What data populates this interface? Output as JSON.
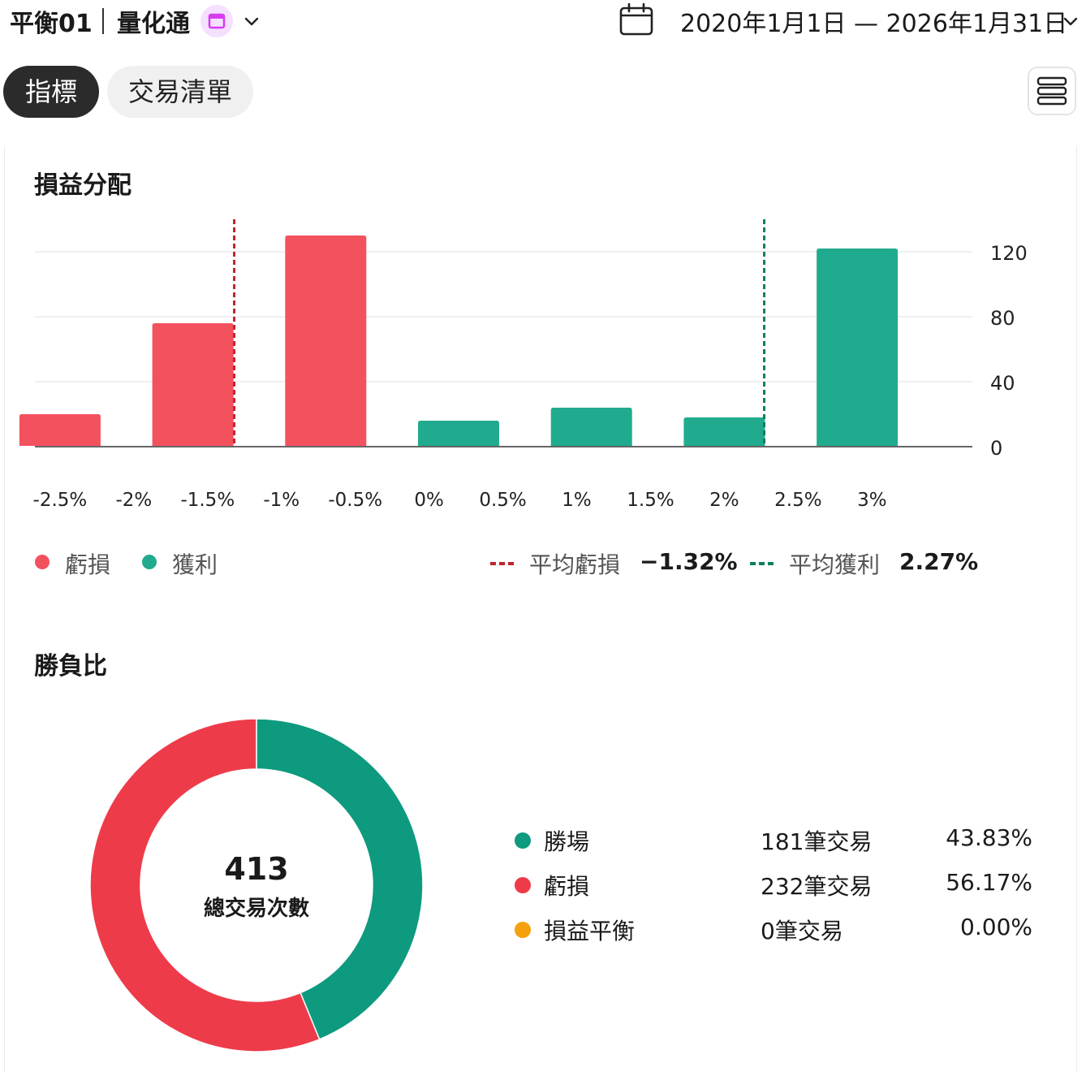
{
  "header": {
    "title": "平衡01",
    "app_name": "量化通",
    "date_range": "2020年1月1日 — 2026年1月31日",
    "icons": [
      "calendar-icon",
      "chevron-down-icon",
      "menu-icon"
    ]
  },
  "tabs": [
    {
      "label": "指標",
      "active": true
    },
    {
      "label": "交易清單",
      "active": false
    }
  ],
  "pl_section": {
    "title": "損益分配",
    "legend_loss": "虧損",
    "legend_gain": "獲利",
    "avg_loss_label": "平均虧損",
    "avg_loss_value": "−1.32%",
    "avg_gain_label": "平均獲利",
    "avg_gain_value": "2.27%"
  },
  "wl_section": {
    "title": "勝負比",
    "total_value": "413",
    "total_label": "總交易次數",
    "rows": [
      {
        "label": "勝場",
        "count": "181筆交易",
        "pct": "43.83%",
        "color": "#0e9a7e"
      },
      {
        "label": "虧損",
        "count": "232筆交易",
        "pct": "56.17%",
        "color": "#ee3b4a"
      },
      {
        "label": "損益平衡",
        "count": "0筆交易",
        "pct": "0.00%",
        "color": "#f4a10c"
      }
    ]
  },
  "colors": {
    "loss": "#f4515f",
    "gain": "#21ab8e",
    "avg_loss_line": "#c0242f",
    "avg_gain_line": "#0a7f5f",
    "donut_win": "#0e9a7e",
    "donut_loss": "#ee3b4a"
  },
  "chart_data": [
    {
      "type": "bar",
      "title": "損益分配",
      "x_tick_labels": [
        "-2.5%",
        "-2%",
        "-1.5%",
        "-1%",
        "-0.5%",
        "0%",
        "0.5%",
        "1%",
        "1.5%",
        "2%",
        "2.5%",
        "3%"
      ],
      "x_ticks": [
        -2.5,
        -2,
        -1.5,
        -1,
        -0.5,
        0,
        0.5,
        1,
        1.5,
        2,
        2.5,
        3
      ],
      "xlim": [
        -2.67,
        3.68
      ],
      "y_ticks": [
        0,
        40,
        80,
        120
      ],
      "ylim": [
        0,
        140
      ],
      "y_axis_side": "right",
      "grid": true,
      "series": [
        {
          "name": "虧損",
          "color": "#f4515f",
          "bars": [
            {
              "x": -2.5,
              "value": 20
            },
            {
              "x": -1.6,
              "value": 76
            },
            {
              "x": -0.7,
              "value": 130
            }
          ]
        },
        {
          "name": "獲利",
          "color": "#21ab8e",
          "bars": [
            {
              "x": 0.2,
              "value": 16
            },
            {
              "x": 1.1,
              "value": 24
            },
            {
              "x": 2.0,
              "value": 18
            },
            {
              "x": 2.9,
              "value": 122
            }
          ]
        }
      ],
      "reference_lines": [
        {
          "name": "平均虧損",
          "x": -1.32,
          "color": "#c0242f",
          "style": "dotted"
        },
        {
          "name": "平均獲利",
          "x": 2.27,
          "color": "#0a7f5f",
          "style": "dotted"
        }
      ]
    },
    {
      "type": "pie",
      "title": "勝負比",
      "donut": true,
      "center_value": "413",
      "center_label": "總交易次數",
      "slices": [
        {
          "label": "勝場",
          "value": 181,
          "pct": 43.83,
          "color": "#0e9a7e"
        },
        {
          "label": "虧損",
          "value": 232,
          "pct": 56.17,
          "color": "#ee3b4a"
        },
        {
          "label": "損益平衡",
          "value": 0,
          "pct": 0.0,
          "color": "#f4a10c"
        }
      ]
    }
  ]
}
